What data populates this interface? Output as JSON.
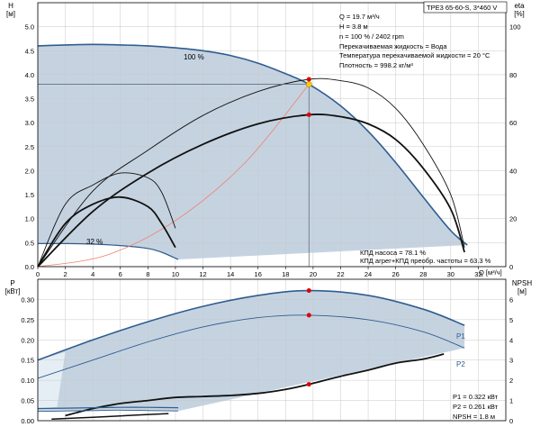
{
  "colors": {
    "area_fill": "#c5d3e1",
    "area_light": "#e6eef5",
    "curve_blue": "#2f5d8f",
    "curve_black": "#111111",
    "system_curve": "#f08070",
    "grid": "#c8c8c8",
    "duty_dot": "#e00000",
    "duty_dot_head": "#ffcc00",
    "crosshair": "#607080"
  },
  "product_label": "TPE3 65-60-S, 3*460 V",
  "info_lines": [
    "Q = 19.7 м³/ч",
    "H = 3.8 м",
    "n = 100 % / 2402 rpm",
    "Перекачиваемая жидкость = Вода",
    "Температура перекачиваемой жидкости = 20 °C",
    "Плотность = 998.2 кг/м³"
  ],
  "efficiency_lines": [
    "КПД насоса = 78.1 %",
    "КПД агрег+КПД преобр. частоты = 63.3 %"
  ],
  "power_lines": [
    "P1 = 0.322 кВт",
    "P2 = 0.261 кВт",
    "NPSH = 1.8 м"
  ],
  "chart_data": [
    {
      "type": "line",
      "title": "",
      "ylabel_symbol": "H",
      "ylabel_unit": "[м]",
      "y2label_symbol": "eta",
      "y2label_unit": "[%]",
      "xlabel": "Q [м³/ч]",
      "xlim": [
        0,
        34
      ],
      "ylim": [
        0,
        5.5
      ],
      "y2lim": [
        0,
        110
      ],
      "xticks": [
        0,
        2,
        4,
        6,
        8,
        10,
        12,
        14,
        16,
        18,
        20,
        22,
        24,
        26,
        28,
        30,
        32
      ],
      "yticks": [
        "0.0",
        "0.5",
        "1.0",
        "1.5",
        "2.0",
        "2.5",
        "3.0",
        "3.5",
        "4.0",
        "4.5",
        "5.0"
      ],
      "y2ticks": [
        0,
        20,
        40,
        60,
        80,
        100
      ],
      "grid": true,
      "annotations": [
        "100 %",
        "32 %"
      ],
      "series": [
        {
          "name": "100 %",
          "axis": "H",
          "x": [
            0,
            2,
            4,
            6,
            8,
            10,
            12,
            14,
            16,
            18,
            19.7,
            22,
            24,
            26,
            28,
            30,
            31.2
          ],
          "y": [
            4.6,
            4.62,
            4.63,
            4.62,
            4.6,
            4.56,
            4.5,
            4.4,
            4.24,
            4.02,
            3.8,
            3.35,
            2.82,
            2.17,
            1.45,
            0.75,
            0.45
          ]
        },
        {
          "name": "32 %",
          "axis": "H",
          "x": [
            0,
            2,
            4,
            6,
            8,
            9,
            10.2
          ],
          "y": [
            0.48,
            0.48,
            0.47,
            0.44,
            0.38,
            0.3,
            0.15
          ]
        },
        {
          "name": "",
          "axis": "H",
          "x": [
            0,
            5,
            10,
            15,
            19.7
          ],
          "y": [
            0,
            0.24,
            0.96,
            2.15,
            3.8
          ]
        },
        {
          "name": "",
          "axis": "eta",
          "x": [
            0,
            4,
            8,
            12,
            16,
            19.7,
            22,
            24,
            26,
            28,
            30,
            31
          ],
          "y": [
            0,
            31.5,
            48.5,
            63,
            73,
            78.1,
            77.5,
            74.5,
            66,
            51,
            30,
            8
          ]
        },
        {
          "name": "",
          "axis": "eta",
          "x": [
            0,
            4,
            8,
            12,
            16,
            19.7,
            22,
            24,
            26,
            28,
            30,
            31
          ],
          "y": [
            0,
            23,
            39,
            51,
            59.5,
            63.3,
            62.5,
            59.5,
            53,
            41,
            24,
            6
          ]
        },
        {
          "name": "",
          "axis": "eta",
          "x": [
            0,
            2,
            4,
            6,
            8,
            9,
            10
          ],
          "y": [
            0,
            26,
            34,
            39,
            37,
            31,
            16
          ]
        },
        {
          "name": "",
          "axis": "eta",
          "x": [
            0,
            2,
            4,
            6,
            8,
            9,
            10
          ],
          "y": [
            0,
            18,
            26,
            29,
            25,
            18,
            8
          ]
        }
      ],
      "duty_points": [
        {
          "x": 19.7,
          "y": 3.8,
          "axis": "H"
        },
        {
          "x": 19.7,
          "y": 78.1,
          "axis": "eta"
        },
        {
          "x": 19.7,
          "y": 63.3,
          "axis": "eta"
        }
      ]
    },
    {
      "type": "line",
      "title": "",
      "ylabel_symbol": "P",
      "ylabel_unit": "[кВт]",
      "y2label_symbol": "NPSH",
      "y2label_unit": "[м]",
      "xlim": [
        0,
        34
      ],
      "ylim": [
        0,
        0.35
      ],
      "y2lim": [
        0,
        7
      ],
      "yticks": [
        "0.00",
        "0.05",
        "0.10",
        "0.15",
        "0.20",
        "0.25",
        "0.30"
      ],
      "y2ticks": [
        0,
        1,
        2,
        3,
        4,
        5,
        6
      ],
      "grid": true,
      "series": [
        {
          "name": "P1",
          "axis": "P",
          "x": [
            0,
            4,
            8,
            12,
            16,
            19.7,
            24,
            28,
            31
          ],
          "y": [
            0.15,
            0.2,
            0.245,
            0.283,
            0.31,
            0.322,
            0.31,
            0.276,
            0.236
          ]
        },
        {
          "name": "P2",
          "axis": "P",
          "x": [
            0,
            4,
            8,
            12,
            16,
            19.7,
            24,
            28,
            31
          ],
          "y": [
            0.105,
            0.15,
            0.195,
            0.232,
            0.255,
            0.261,
            0.25,
            0.22,
            0.18
          ]
        },
        {
          "name": "",
          "axis": "NPSH",
          "x": [
            2,
            4,
            6,
            8,
            10,
            12,
            14,
            16,
            18,
            19.7,
            22,
            24,
            26,
            28,
            29.5
          ],
          "y": [
            0.25,
            0.6,
            0.85,
            1.0,
            1.15,
            1.2,
            1.25,
            1.35,
            1.55,
            1.8,
            2.2,
            2.5,
            2.85,
            3.05,
            3.3
          ]
        },
        {
          "name": "",
          "axis": "P",
          "x": [
            0,
            2,
            4,
            6,
            8,
            10.2
          ],
          "y": [
            0.03,
            0.031,
            0.032,
            0.033,
            0.033,
            0.032
          ]
        },
        {
          "name": "",
          "axis": "P",
          "x": [
            0,
            2,
            4,
            6,
            8,
            10.2
          ],
          "y": [
            0.023,
            0.024,
            0.025,
            0.026,
            0.025,
            0.024
          ]
        },
        {
          "name": "",
          "axis": "NPSH",
          "x": [
            1,
            3,
            5,
            7,
            9.5
          ],
          "y": [
            0.08,
            0.14,
            0.2,
            0.27,
            0.35
          ]
        }
      ],
      "series_labels": [
        "P1",
        "P2"
      ],
      "duty_points": [
        {
          "x": 19.7,
          "y": 0.322,
          "axis": "P"
        },
        {
          "x": 19.7,
          "y": 0.261,
          "axis": "P"
        },
        {
          "x": 19.7,
          "y": 1.8,
          "axis": "NPSH"
        }
      ]
    }
  ]
}
